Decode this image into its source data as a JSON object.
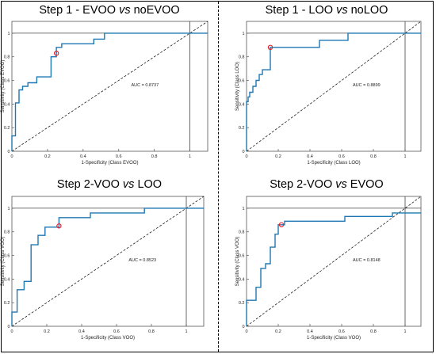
{
  "chart_data": [
    {
      "type": "line",
      "title_parts": [
        "Step 1 - EVOO ",
        "vs",
        " noEVOO"
      ],
      "xlabel": "1-Specificity  (Class EVOO)",
      "ylabel": "Sensitivity  (Class EVOO)",
      "xlim": [
        0,
        1.1
      ],
      "ylim": [
        0,
        1.1
      ],
      "xticks": [
        "0",
        "0.2",
        "0.4",
        "0.6",
        "0.8",
        "1"
      ],
      "yticks": [
        "0",
        "0.2",
        "0.4",
        "0.6",
        "0.8",
        "1"
      ],
      "auc_label": "AUC = 0.8737",
      "roc": [
        [
          0,
          0
        ],
        [
          0,
          0.13
        ],
        [
          0.02,
          0.13
        ],
        [
          0.02,
          0.41
        ],
        [
          0.04,
          0.41
        ],
        [
          0.04,
          0.52
        ],
        [
          0.06,
          0.52
        ],
        [
          0.06,
          0.55
        ],
        [
          0.09,
          0.55
        ],
        [
          0.09,
          0.58
        ],
        [
          0.14,
          0.58
        ],
        [
          0.14,
          0.63
        ],
        [
          0.22,
          0.63
        ],
        [
          0.22,
          0.8
        ],
        [
          0.25,
          0.8
        ],
        [
          0.25,
          0.88
        ],
        [
          0.28,
          0.88
        ],
        [
          0.28,
          0.91
        ],
        [
          0.46,
          0.91
        ],
        [
          0.46,
          0.95
        ],
        [
          0.52,
          0.95
        ],
        [
          0.52,
          1
        ],
        [
          1.1,
          1
        ]
      ],
      "operating_point": [
        0.25,
        0.83
      ]
    },
    {
      "type": "line",
      "title_parts": [
        "Step 1 - LOO ",
        "vs",
        " noLOO"
      ],
      "xlabel": "1-Specificity  (Class LOO)",
      "ylabel": "Sensitivity  (Class LOO)",
      "xlim": [
        0,
        1.1
      ],
      "ylim": [
        0,
        1.1
      ],
      "xticks": [
        "0",
        "0.2",
        "0.4",
        "0.6",
        "0.8",
        "1"
      ],
      "yticks": [
        "0",
        "0.2",
        "0.4",
        "0.6",
        "0.8",
        "1"
      ],
      "auc_label": "AUC = 0.8899",
      "roc": [
        [
          0,
          0
        ],
        [
          0,
          0.42
        ],
        [
          0.01,
          0.42
        ],
        [
          0.01,
          0.46
        ],
        [
          0.02,
          0.46
        ],
        [
          0.02,
          0.5
        ],
        [
          0.04,
          0.5
        ],
        [
          0.04,
          0.55
        ],
        [
          0.06,
          0.55
        ],
        [
          0.06,
          0.6
        ],
        [
          0.08,
          0.6
        ],
        [
          0.08,
          0.65
        ],
        [
          0.1,
          0.65
        ],
        [
          0.1,
          0.69
        ],
        [
          0.15,
          0.69
        ],
        [
          0.15,
          0.88
        ],
        [
          0.46,
          0.88
        ],
        [
          0.46,
          0.94
        ],
        [
          0.64,
          0.94
        ],
        [
          0.64,
          1
        ],
        [
          1.1,
          1
        ]
      ],
      "operating_point": [
        0.15,
        0.88
      ]
    },
    {
      "type": "line",
      "title_parts": [
        "Step 2-VOO ",
        "vs",
        " LOO"
      ],
      "xlabel": "1-Specificity (Class VOO)",
      "ylabel": "Sensitivity  (Class VOO)",
      "xlim": [
        0,
        1.1
      ],
      "ylim": [
        0,
        1.1
      ],
      "xticks": [
        "0",
        "0.2",
        "0.4",
        "0.6",
        "0.8",
        "1"
      ],
      "yticks": [
        "0",
        "0.2",
        "0.4",
        "0.6",
        "0.8",
        "1"
      ],
      "auc_label": "AUC = 0.8523",
      "roc": [
        [
          0,
          0
        ],
        [
          0,
          0.12
        ],
        [
          0.03,
          0.12
        ],
        [
          0.03,
          0.31
        ],
        [
          0.07,
          0.31
        ],
        [
          0.07,
          0.38
        ],
        [
          0.11,
          0.38
        ],
        [
          0.11,
          0.69
        ],
        [
          0.15,
          0.69
        ],
        [
          0.15,
          0.77
        ],
        [
          0.19,
          0.77
        ],
        [
          0.19,
          0.84
        ],
        [
          0.27,
          0.84
        ],
        [
          0.27,
          0.92
        ],
        [
          0.45,
          0.92
        ],
        [
          0.45,
          0.96
        ],
        [
          0.76,
          0.96
        ],
        [
          0.76,
          1
        ],
        [
          1.1,
          1
        ]
      ],
      "operating_point": [
        0.27,
        0.85
      ]
    },
    {
      "type": "line",
      "title_parts": [
        "Step 2-VOO ",
        "vs",
        " EVOO"
      ],
      "xlabel": "1-Specificity (Class VOO)",
      "ylabel": "Sensitivity  (Class VOO)",
      "xlim": [
        0,
        1.1
      ],
      "ylim": [
        0,
        1.1
      ],
      "xticks": [
        "0",
        "0.2",
        "0.4",
        "0.6",
        "0.8",
        "1"
      ],
      "yticks": [
        "0",
        "0.2",
        "0.4",
        "0.6",
        "0.8",
        "1"
      ],
      "auc_label": "AUC = 0.8148",
      "roc": [
        [
          0,
          0
        ],
        [
          0,
          0.22
        ],
        [
          0.06,
          0.22
        ],
        [
          0.06,
          0.33
        ],
        [
          0.09,
          0.33
        ],
        [
          0.09,
          0.49
        ],
        [
          0.12,
          0.49
        ],
        [
          0.12,
          0.53
        ],
        [
          0.15,
          0.53
        ],
        [
          0.15,
          0.67
        ],
        [
          0.18,
          0.67
        ],
        [
          0.18,
          0.78
        ],
        [
          0.2,
          0.78
        ],
        [
          0.2,
          0.86
        ],
        [
          0.24,
          0.86
        ],
        [
          0.24,
          0.89
        ],
        [
          0.62,
          0.89
        ],
        [
          0.62,
          0.93
        ],
        [
          0.92,
          0.93
        ],
        [
          0.92,
          0.96
        ],
        [
          1.1,
          0.96
        ]
      ],
      "operating_point": [
        0.22,
        0.86
      ]
    }
  ],
  "colors": {
    "roc_line": "#1f77b4",
    "marker": "#e8202a",
    "axis": "#555555",
    "diagonal": "#000000"
  }
}
